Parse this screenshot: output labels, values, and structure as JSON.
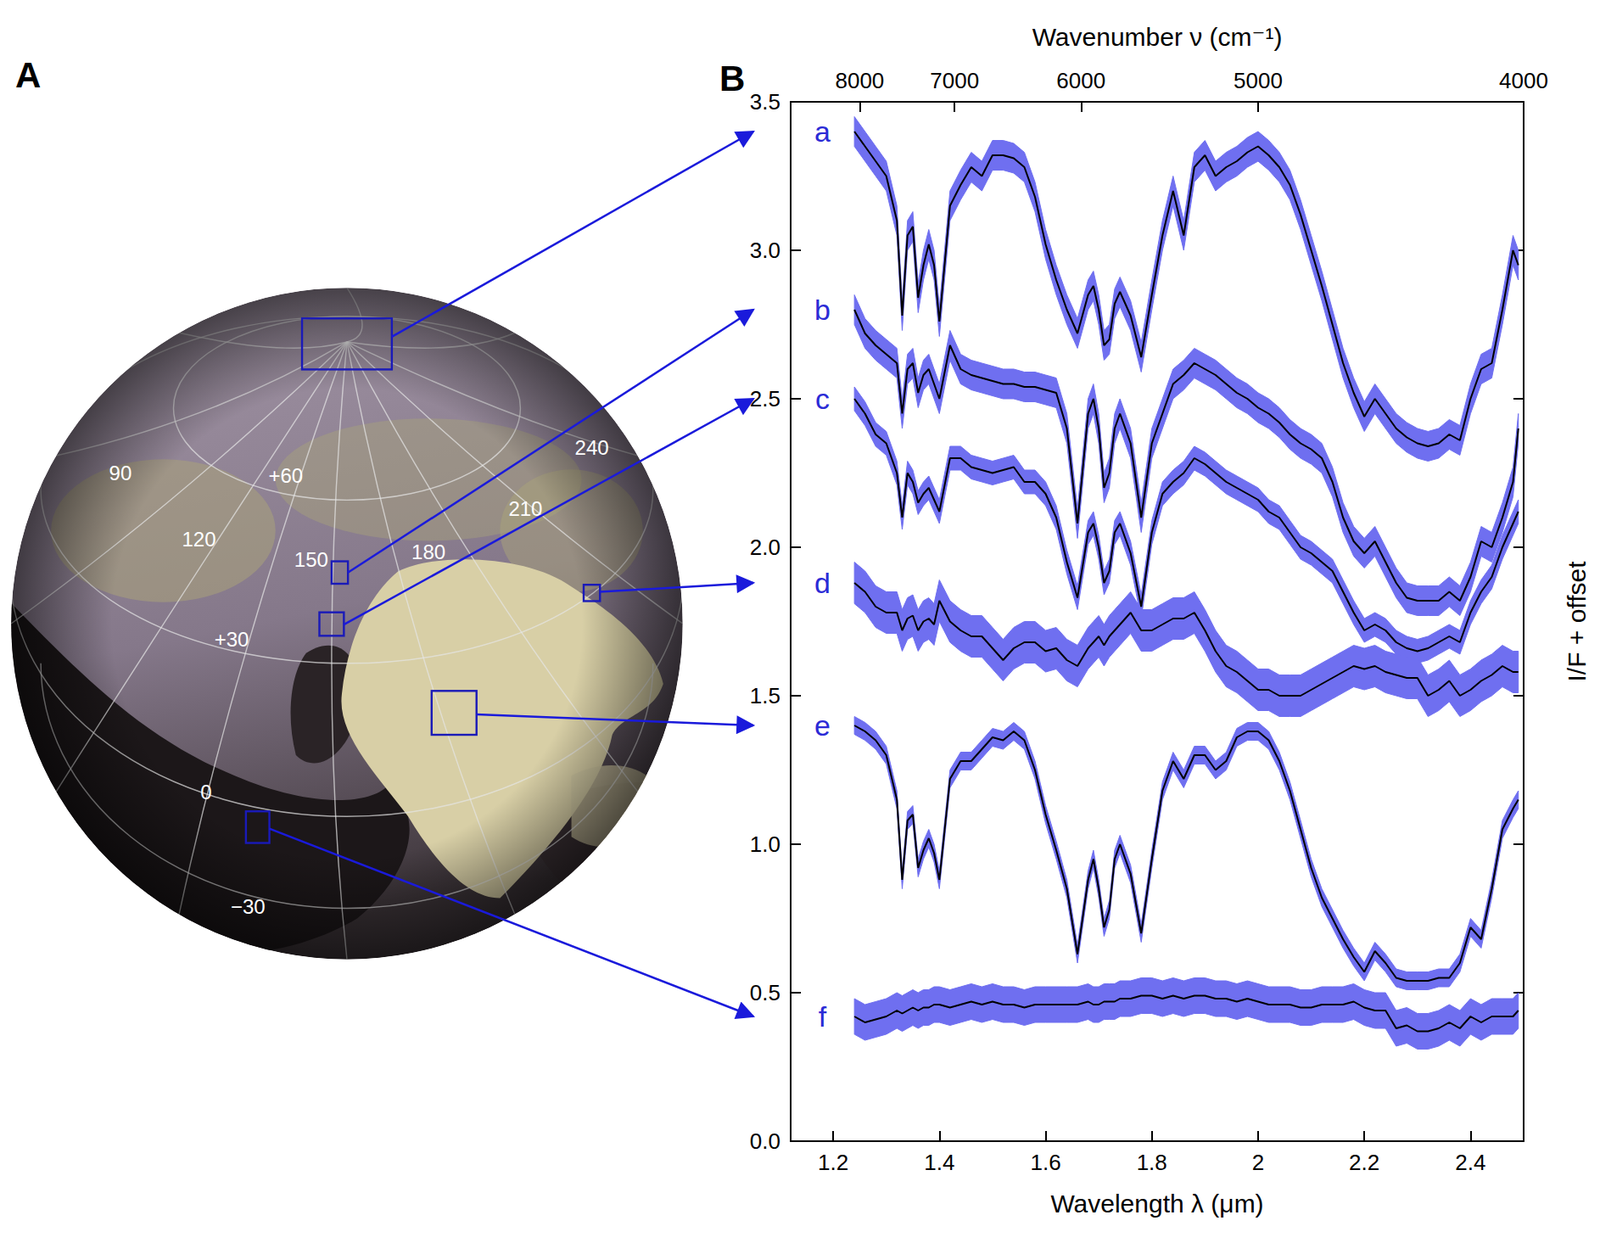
{
  "panel_a": {
    "label": "A",
    "grid_labels": [
      "90",
      "+60",
      "120",
      "150",
      "180",
      "210",
      "240",
      "+30",
      "0",
      "−30"
    ]
  },
  "chart_data": {
    "type": "line",
    "panel_label": "B",
    "x_label": "Wavelength λ (μm)",
    "x2_label": "Wavenumber ν (cm⁻¹)",
    "y_label": "I/F + offset",
    "grid": false,
    "xlim": [
      1.12,
      2.5
    ],
    "xticks": [
      1.2,
      1.4,
      1.6,
      1.8,
      2.0,
      2.2,
      2.4
    ],
    "x2ticks": [
      {
        "value": 1.25,
        "label": "8000"
      },
      {
        "value": 1.4286,
        "label": "7000"
      },
      {
        "value": 1.6667,
        "label": "6000"
      },
      {
        "value": 2.0,
        "label": "5000"
      },
      {
        "value": 2.5,
        "label": "4000"
      }
    ],
    "ylim": [
      0,
      3.5
    ],
    "yticks": [
      {
        "value": 0,
        "label": "0.0"
      },
      {
        "value": 0.5,
        "label": "0.5"
      },
      {
        "value": 1,
        "label": "1.0"
      },
      {
        "value": 1.5,
        "label": "1.5"
      },
      {
        "value": 2,
        "label": "2.0"
      },
      {
        "value": 2.5,
        "label": "2.5"
      },
      {
        "value": 3,
        "label": "3.0"
      },
      {
        "value": 3.5,
        "label": "3.5"
      }
    ],
    "x": [
      1.24,
      1.26,
      1.28,
      1.3,
      1.32,
      1.33,
      1.34,
      1.35,
      1.36,
      1.37,
      1.38,
      1.39,
      1.4,
      1.42,
      1.44,
      1.46,
      1.48,
      1.5,
      1.52,
      1.54,
      1.56,
      1.58,
      1.6,
      1.62,
      1.64,
      1.66,
      1.68,
      1.69,
      1.7,
      1.71,
      1.72,
      1.73,
      1.74,
      1.76,
      1.78,
      1.8,
      1.82,
      1.84,
      1.86,
      1.88,
      1.9,
      1.92,
      1.94,
      1.96,
      1.98,
      2.0,
      2.02,
      2.04,
      2.06,
      2.08,
      2.1,
      2.12,
      2.14,
      2.16,
      2.18,
      2.2,
      2.22,
      2.24,
      2.26,
      2.28,
      2.3,
      2.32,
      2.34,
      2.36,
      2.38,
      2.4,
      2.42,
      2.44,
      2.46,
      2.48,
      2.49
    ],
    "series": [
      {
        "name": "a",
        "color": "#000000",
        "error": 0.05,
        "values": [
          3.4,
          3.35,
          3.3,
          3.25,
          3.1,
          2.78,
          3.05,
          3.08,
          2.84,
          2.95,
          3.02,
          2.95,
          2.76,
          3.15,
          3.22,
          3.28,
          3.25,
          3.32,
          3.32,
          3.31,
          3.28,
          3.18,
          3.02,
          2.9,
          2.8,
          2.72,
          2.85,
          2.88,
          2.8,
          2.68,
          2.7,
          2.82,
          2.86,
          2.78,
          2.64,
          2.85,
          3.05,
          3.2,
          3.05,
          3.28,
          3.32,
          3.25,
          3.28,
          3.3,
          3.33,
          3.35,
          3.32,
          3.28,
          3.22,
          3.12,
          3.0,
          2.88,
          2.75,
          2.62,
          2.52,
          2.44,
          2.5,
          2.45,
          2.4,
          2.37,
          2.35,
          2.34,
          2.35,
          2.38,
          2.36,
          2.5,
          2.6,
          2.62,
          2.8,
          3.0,
          2.95
        ]
      },
      {
        "name": "b",
        "color": "#000000",
        "error": 0.05,
        "values": [
          2.8,
          2.72,
          2.68,
          2.65,
          2.62,
          2.45,
          2.6,
          2.62,
          2.52,
          2.58,
          2.6,
          2.55,
          2.5,
          2.68,
          2.6,
          2.58,
          2.57,
          2.56,
          2.55,
          2.55,
          2.54,
          2.54,
          2.53,
          2.52,
          2.4,
          2.08,
          2.45,
          2.5,
          2.4,
          2.2,
          2.25,
          2.4,
          2.45,
          2.35,
          2.1,
          2.35,
          2.45,
          2.55,
          2.58,
          2.62,
          2.6,
          2.58,
          2.55,
          2.52,
          2.5,
          2.47,
          2.45,
          2.42,
          2.38,
          2.35,
          2.33,
          2.3,
          2.22,
          2.1,
          2.02,
          1.98,
          2.02,
          1.95,
          1.88,
          1.83,
          1.82,
          1.82,
          1.82,
          1.85,
          1.82,
          1.9,
          2.02,
          2.0,
          2.1,
          2.22,
          2.4
        ]
      },
      {
        "name": "c",
        "color": "#000000",
        "error": 0.04,
        "values": [
          2.5,
          2.45,
          2.38,
          2.35,
          2.25,
          2.1,
          2.25,
          2.22,
          2.15,
          2.18,
          2.2,
          2.16,
          2.12,
          2.3,
          2.3,
          2.27,
          2.26,
          2.25,
          2.26,
          2.27,
          2.22,
          2.22,
          2.18,
          2.1,
          1.95,
          1.83,
          2.05,
          2.08,
          2.0,
          1.88,
          1.92,
          2.05,
          2.08,
          1.98,
          1.8,
          2.05,
          2.18,
          2.22,
          2.25,
          2.3,
          2.28,
          2.25,
          2.22,
          2.2,
          2.18,
          2.16,
          2.12,
          2.1,
          2.05,
          2.0,
          1.98,
          1.95,
          1.92,
          1.85,
          1.78,
          1.72,
          1.74,
          1.72,
          1.68,
          1.66,
          1.65,
          1.66,
          1.68,
          1.7,
          1.68,
          1.78,
          1.85,
          1.9,
          2.0,
          2.08,
          2.12
        ]
      },
      {
        "name": "d",
        "color": "#000000",
        "error": 0.07,
        "values": [
          1.88,
          1.85,
          1.8,
          1.78,
          1.78,
          1.72,
          1.76,
          1.77,
          1.72,
          1.75,
          1.76,
          1.74,
          1.82,
          1.75,
          1.72,
          1.7,
          1.7,
          1.66,
          1.62,
          1.66,
          1.68,
          1.68,
          1.65,
          1.66,
          1.62,
          1.6,
          1.66,
          1.68,
          1.7,
          1.67,
          1.7,
          1.72,
          1.74,
          1.78,
          1.72,
          1.72,
          1.74,
          1.76,
          1.76,
          1.78,
          1.72,
          1.65,
          1.6,
          1.58,
          1.55,
          1.52,
          1.52,
          1.5,
          1.5,
          1.5,
          1.52,
          1.54,
          1.56,
          1.58,
          1.6,
          1.59,
          1.6,
          1.58,
          1.57,
          1.56,
          1.56,
          1.5,
          1.52,
          1.55,
          1.5,
          1.52,
          1.55,
          1.57,
          1.6,
          1.58,
          1.58
        ]
      },
      {
        "name": "e",
        "color": "#000000",
        "error": 0.03,
        "values": [
          1.4,
          1.38,
          1.35,
          1.3,
          1.15,
          0.88,
          1.08,
          1.1,
          0.92,
          0.98,
          1.02,
          0.97,
          0.88,
          1.22,
          1.28,
          1.28,
          1.32,
          1.36,
          1.35,
          1.38,
          1.35,
          1.25,
          1.1,
          0.98,
          0.85,
          0.63,
          0.88,
          0.95,
          0.85,
          0.72,
          0.78,
          0.95,
          1.0,
          0.9,
          0.7,
          0.95,
          1.18,
          1.28,
          1.22,
          1.3,
          1.3,
          1.25,
          1.28,
          1.36,
          1.38,
          1.38,
          1.35,
          1.28,
          1.18,
          1.05,
          0.92,
          0.82,
          0.75,
          0.68,
          0.62,
          0.57,
          0.64,
          0.6,
          0.55,
          0.54,
          0.54,
          0.54,
          0.55,
          0.55,
          0.6,
          0.72,
          0.68,
          0.85,
          1.05,
          1.12,
          1.15
        ]
      },
      {
        "name": "f",
        "color": "#000000",
        "error": 0.06,
        "values": [
          0.42,
          0.4,
          0.41,
          0.42,
          0.44,
          0.43,
          0.44,
          0.45,
          0.44,
          0.45,
          0.45,
          0.46,
          0.46,
          0.45,
          0.46,
          0.47,
          0.46,
          0.47,
          0.46,
          0.46,
          0.45,
          0.46,
          0.46,
          0.46,
          0.46,
          0.46,
          0.47,
          0.46,
          0.46,
          0.47,
          0.47,
          0.47,
          0.48,
          0.48,
          0.49,
          0.49,
          0.48,
          0.49,
          0.48,
          0.49,
          0.49,
          0.48,
          0.48,
          0.47,
          0.48,
          0.47,
          0.46,
          0.46,
          0.46,
          0.45,
          0.45,
          0.46,
          0.46,
          0.46,
          0.47,
          0.45,
          0.44,
          0.44,
          0.38,
          0.39,
          0.37,
          0.37,
          0.38,
          0.4,
          0.38,
          0.42,
          0.4,
          0.42,
          0.42,
          0.42,
          0.44
        ]
      }
    ]
  }
}
